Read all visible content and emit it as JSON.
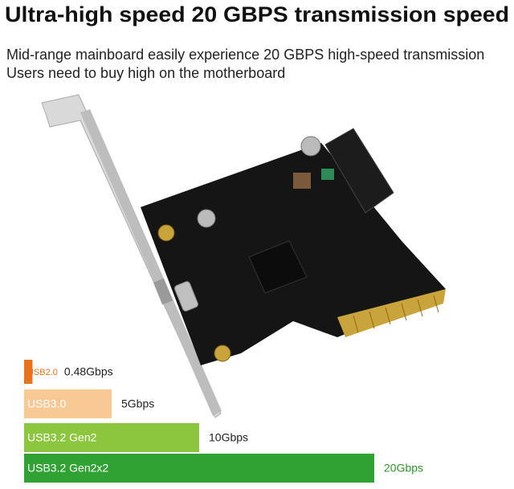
{
  "chart_data": {
    "type": "bar",
    "title": "Ultra-high speed 20 GBPS transmission speed",
    "subtitle": [
      "Mid-range mainboard easily experience 20 GBPS high-speed transmission",
      "Users need to buy high on the motherboard"
    ],
    "categories": [
      "USB2.0",
      "USB3.0",
      "USB3.2 Gen2",
      "USB3.2 Gen2x2"
    ],
    "values": [
      0.48,
      5,
      10,
      20
    ],
    "value_labels": [
      "0.48Gbps",
      "5Gbps",
      "10Gbps",
      "20Gbps"
    ],
    "colors": [
      "#e8731c",
      "#f8c995",
      "#8cc63f",
      "#2fa233"
    ],
    "value_label_colors": [
      "#222222",
      "#222222",
      "#222222",
      "#2a9a2a"
    ]
  }
}
